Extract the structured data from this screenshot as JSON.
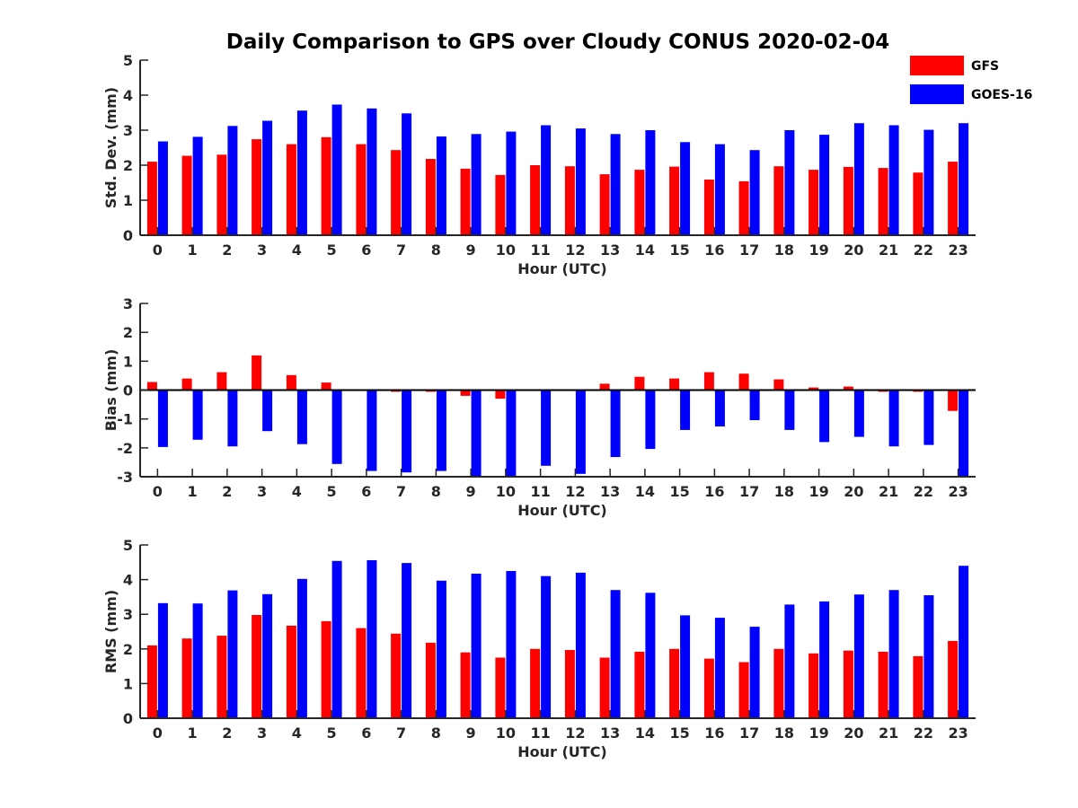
{
  "title": "Daily Comparison to GPS over Cloudy CONUS 2020-02-04",
  "legend": {
    "placement": "top-right",
    "entries": [
      {
        "label": "GFS",
        "color": "#ff0000"
      },
      {
        "label": "GOES-16",
        "color": "#0000ff"
      }
    ]
  },
  "chart_data": [
    {
      "type": "bar",
      "xlabel": "Hour (UTC)",
      "ylabel": "Std. Dev. (mm)",
      "ylim": [
        0,
        5
      ],
      "yticks": [
        0,
        1,
        2,
        3,
        4,
        5
      ],
      "categories": [
        "0",
        "1",
        "2",
        "3",
        "4",
        "5",
        "6",
        "7",
        "8",
        "9",
        "10",
        "11",
        "12",
        "13",
        "14",
        "15",
        "16",
        "17",
        "18",
        "19",
        "20",
        "21",
        "22",
        "23"
      ],
      "series": [
        {
          "name": "GFS",
          "color": "#ff0000",
          "values": [
            2.1,
            2.27,
            2.3,
            2.74,
            2.6,
            2.8,
            2.6,
            2.43,
            2.18,
            1.9,
            1.72,
            2.0,
            1.97,
            1.74,
            1.87,
            1.96,
            1.59,
            1.54,
            1.97,
            1.87,
            1.95,
            1.92,
            1.79,
            2.1
          ]
        },
        {
          "name": "GOES-16",
          "color": "#0000ff",
          "values": [
            2.68,
            2.81,
            3.12,
            3.27,
            3.56,
            3.73,
            3.62,
            3.48,
            2.82,
            2.89,
            2.96,
            3.14,
            3.05,
            2.89,
            3.0,
            2.66,
            2.6,
            2.43,
            3.0,
            2.87,
            3.2,
            3.14,
            3.01,
            3.2
          ]
        }
      ]
    },
    {
      "type": "bar",
      "xlabel": "Hour (UTC)",
      "ylabel": "Bias (mm)",
      "ylim": [
        -3,
        3
      ],
      "yticks": [
        -3,
        -2,
        -1,
        0,
        1,
        2,
        3
      ],
      "zero_line": true,
      "categories": [
        "0",
        "1",
        "2",
        "3",
        "4",
        "5",
        "6",
        "7",
        "8",
        "9",
        "10",
        "11",
        "12",
        "13",
        "14",
        "15",
        "16",
        "17",
        "18",
        "19",
        "20",
        "21",
        "22",
        "23"
      ],
      "series": [
        {
          "name": "GFS",
          "color": "#ff0000",
          "values": [
            0.28,
            0.4,
            0.62,
            1.2,
            0.52,
            0.26,
            0.0,
            -0.06,
            -0.06,
            -0.2,
            -0.3,
            0.03,
            -0.02,
            0.22,
            0.46,
            0.4,
            0.62,
            0.57,
            0.37,
            0.09,
            0.12,
            -0.06,
            -0.06,
            -0.72
          ]
        },
        {
          "name": "GOES-16",
          "color": "#0000ff",
          "values": [
            -1.97,
            -1.72,
            -1.95,
            -1.42,
            -1.87,
            -2.56,
            -2.8,
            -2.85,
            -2.8,
            -3.0,
            -3.0,
            -2.62,
            -2.9,
            -2.32,
            -2.04,
            -1.38,
            -1.26,
            -1.04,
            -1.38,
            -1.8,
            -1.62,
            -1.95,
            -1.9,
            -3.0
          ]
        }
      ]
    },
    {
      "type": "bar",
      "xlabel": "Hour (UTC)",
      "ylabel": "RMS (mm)",
      "ylim": [
        0,
        5
      ],
      "yticks": [
        0,
        1,
        2,
        3,
        4,
        5
      ],
      "categories": [
        "0",
        "1",
        "2",
        "3",
        "4",
        "5",
        "6",
        "7",
        "8",
        "9",
        "10",
        "11",
        "12",
        "13",
        "14",
        "15",
        "16",
        "17",
        "18",
        "19",
        "20",
        "21",
        "22",
        "23"
      ],
      "series": [
        {
          "name": "GFS",
          "color": "#ff0000",
          "values": [
            2.1,
            2.3,
            2.38,
            2.98,
            2.67,
            2.8,
            2.6,
            2.44,
            2.18,
            1.9,
            1.75,
            2.0,
            1.97,
            1.75,
            1.92,
            2.0,
            1.72,
            1.62,
            2.0,
            1.87,
            1.95,
            1.92,
            1.79,
            2.23
          ]
        },
        {
          "name": "GOES-16",
          "color": "#0000ff",
          "values": [
            3.32,
            3.31,
            3.69,
            3.58,
            4.02,
            4.54,
            4.56,
            4.48,
            3.97,
            4.17,
            4.25,
            4.1,
            4.2,
            3.7,
            3.62,
            2.97,
            2.9,
            2.64,
            3.28,
            3.37,
            3.57,
            3.7,
            3.55,
            4.4
          ]
        }
      ]
    }
  ]
}
